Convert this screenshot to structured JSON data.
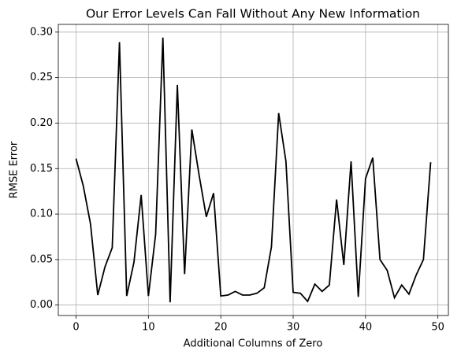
{
  "chart_data": {
    "type": "line",
    "title": "Our Error Levels Can Fall Without Any New Information",
    "x_label": "Additional Columns of Zero",
    "y_label": "RMSE Error",
    "x": [
      0,
      1,
      2,
      3,
      4,
      5,
      6,
      7,
      8,
      9,
      10,
      11,
      12,
      13,
      14,
      15,
      16,
      17,
      18,
      19,
      20,
      21,
      22,
      23,
      24,
      25,
      26,
      27,
      28,
      29,
      30,
      31,
      32,
      33,
      34,
      35,
      36,
      37,
      38,
      39,
      40,
      41,
      42,
      43,
      44,
      45,
      46,
      47,
      48,
      49
    ],
    "values": [
      0.161,
      0.131,
      0.089,
      0.011,
      0.042,
      0.063,
      0.289,
      0.01,
      0.047,
      0.121,
      0.01,
      0.078,
      0.294,
      0.003,
      0.242,
      0.034,
      0.193,
      0.143,
      0.097,
      0.123,
      0.01,
      0.011,
      0.015,
      0.011,
      0.011,
      0.013,
      0.019,
      0.064,
      0.211,
      0.158,
      0.014,
      0.013,
      0.004,
      0.023,
      0.015,
      0.022,
      0.116,
      0.044,
      0.158,
      0.009,
      0.139,
      0.162,
      0.05,
      0.038,
      0.008,
      0.022,
      0.012,
      0.033,
      0.05,
      0.157
    ],
    "color": "#000000",
    "xlim": [
      -2.45,
      51.45
    ],
    "ylim": [
      -0.0115,
      0.3085
    ],
    "xticks": [
      0,
      10,
      20,
      30,
      40,
      50
    ],
    "yticks": [
      {
        "value": 0,
        "label": "0.00"
      },
      {
        "value": 0.05,
        "label": "0.05"
      },
      {
        "value": 0.1,
        "label": "0.10"
      },
      {
        "value": 0.15,
        "label": "0.15"
      },
      {
        "value": 0.2,
        "label": "0.20"
      },
      {
        "value": 0.25,
        "label": "0.25"
      },
      {
        "value": 0.3,
        "label": "0.30"
      }
    ],
    "grid": true
  }
}
